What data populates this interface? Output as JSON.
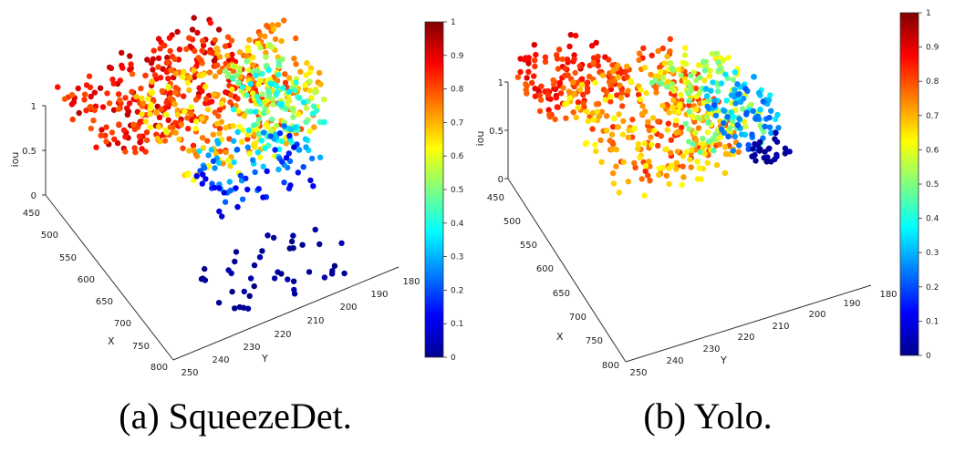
{
  "chart_data": [
    {
      "type": "scatter",
      "caption": "(a) SqueezeDet.",
      "x_label": "X",
      "y_label": "Y",
      "z_label": "iou",
      "x_ticks": [
        "450",
        "500",
        "550",
        "600",
        "650",
        "700",
        "750",
        "800"
      ],
      "y_ticks": [
        "250",
        "240",
        "230",
        "220",
        "210",
        "200",
        "190",
        "180"
      ],
      "z_ticks": [
        "0",
        "0.5",
        "1"
      ],
      "colorbar_ticks": [
        "0",
        "0.1",
        "0.2",
        "0.3",
        "0.4",
        "0.5",
        "0.6",
        "0.7",
        "0.8",
        "0.9",
        "1"
      ],
      "colormap": "jet",
      "clusters": [
        {
          "x_range": [
            460,
            620
          ],
          "y_range": [
            200,
            250
          ],
          "iou": [
            0.78,
            0.95
          ],
          "count": 260
        },
        {
          "x_range": [
            480,
            680
          ],
          "y_range": [
            190,
            230
          ],
          "iou": [
            0.6,
            0.85
          ],
          "count": 240
        },
        {
          "x_range": [
            470,
            620
          ],
          "y_range": [
            180,
            200
          ],
          "iou": [
            0.35,
            0.8
          ],
          "count": 200
        },
        {
          "x_range": [
            540,
            640
          ],
          "y_range": [
            185,
            215
          ],
          "iou": [
            0.08,
            0.35
          ],
          "count": 90
        },
        {
          "x_range": [
            660,
            780
          ],
          "y_range": [
            190,
            230
          ],
          "iou": [
            0.0,
            0.05
          ],
          "count": 45
        }
      ]
    },
    {
      "type": "scatter",
      "caption": "(b) Yolo.",
      "x_label": "X",
      "y_label": "Y",
      "z_label": "iou",
      "x_ticks": [
        "450",
        "500",
        "550",
        "600",
        "650",
        "700",
        "750",
        "800"
      ],
      "y_ticks": [
        "250",
        "240",
        "230",
        "220",
        "210",
        "200",
        "190",
        "180"
      ],
      "z_ticks": [
        "0",
        "0.5",
        "1"
      ],
      "colorbar_ticks": [
        "0",
        "0.1",
        "0.2",
        "0.3",
        "0.4",
        "0.5",
        "0.6",
        "0.7",
        "0.8",
        "0.9",
        "1"
      ],
      "colormap": "jet",
      "clusters": [
        {
          "x_range": [
            450,
            560
          ],
          "y_range": [
            225,
            250
          ],
          "iou": [
            0.78,
            0.92
          ],
          "count": 120
        },
        {
          "x_range": [
            480,
            700
          ],
          "y_range": [
            205,
            240
          ],
          "iou": [
            0.62,
            0.85
          ],
          "count": 330
        },
        {
          "x_range": [
            470,
            620
          ],
          "y_range": [
            192,
            212
          ],
          "iou": [
            0.45,
            0.65
          ],
          "count": 130
        },
        {
          "x_range": [
            470,
            580
          ],
          "y_range": [
            182,
            198
          ],
          "iou": [
            0.2,
            0.38
          ],
          "count": 90
        },
        {
          "x_range": [
            520,
            560
          ],
          "y_range": [
            180,
            190
          ],
          "iou": [
            0.0,
            0.06
          ],
          "count": 25
        }
      ]
    }
  ]
}
